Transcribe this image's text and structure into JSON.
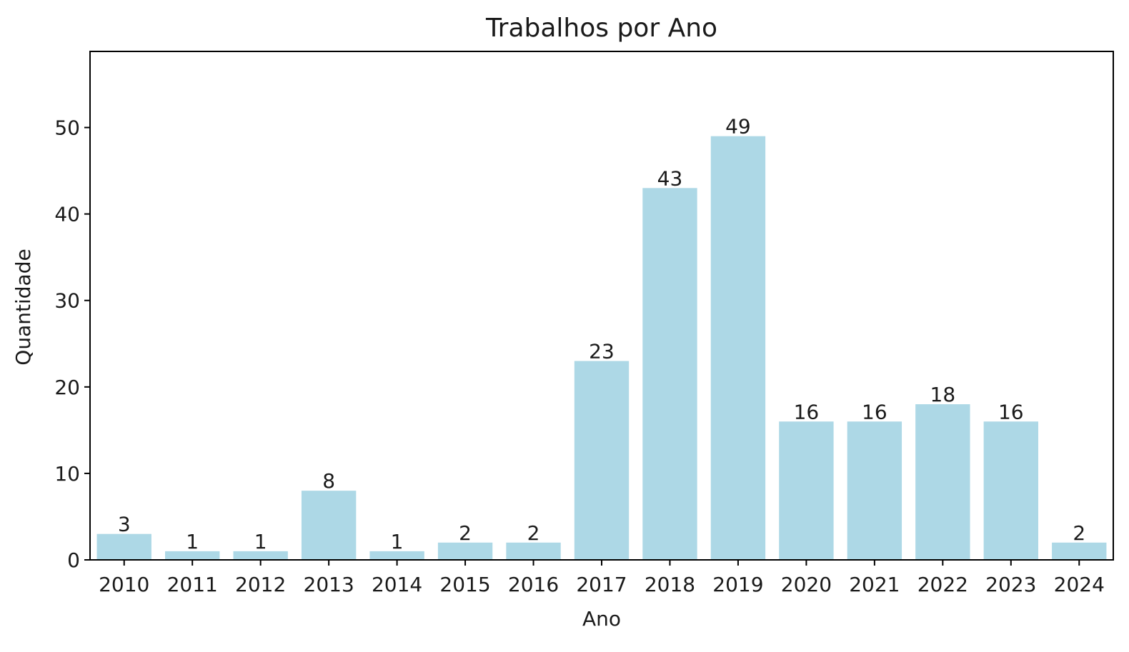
{
  "chart_data": {
    "type": "bar",
    "title": "Trabalhos por Ano",
    "xlabel": "Ano",
    "ylabel": "Quantidade",
    "categories": [
      "2010",
      "2011",
      "2012",
      "2013",
      "2014",
      "2015",
      "2016",
      "2017",
      "2018",
      "2019",
      "2020",
      "2021",
      "2022",
      "2023",
      "2024"
    ],
    "values": [
      3,
      1,
      1,
      8,
      1,
      2,
      2,
      23,
      43,
      49,
      16,
      16,
      18,
      16,
      2
    ],
    "value_labels": [
      "3",
      "1",
      "1",
      "8",
      "1",
      "2",
      "2",
      "23",
      "43",
      "49",
      "16",
      "16",
      "18",
      "16",
      "2"
    ],
    "ylim": [
      0,
      58.8
    ],
    "yticks": [
      0,
      10,
      20,
      30,
      40,
      50
    ],
    "ytick_labels": [
      "0",
      "10",
      "20",
      "30",
      "40",
      "50"
    ],
    "grid": false,
    "legend": "none",
    "bar_color": "#add8e6"
  }
}
